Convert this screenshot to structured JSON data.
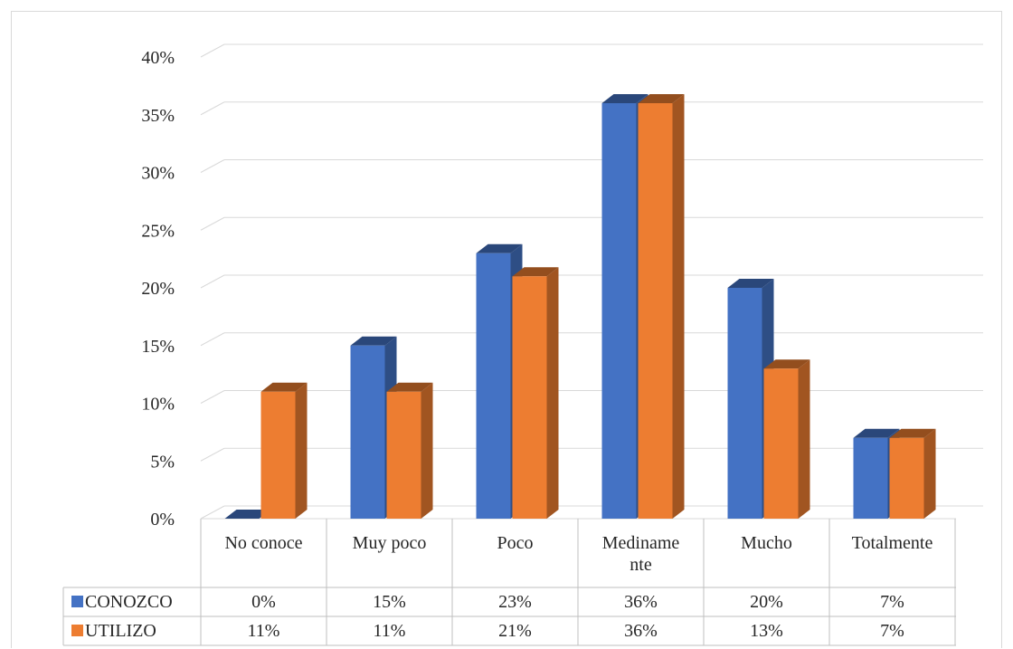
{
  "chart_data": {
    "type": "bar",
    "categories": [
      "No conoce",
      "Muy poco",
      "Poco",
      "Medianamente",
      "Mucho",
      "Totalmente"
    ],
    "category_lines": [
      [
        "No conoce"
      ],
      [
        "Muy poco"
      ],
      [
        "Poco"
      ],
      [
        "Mediname",
        "nte"
      ],
      [
        "Mucho"
      ],
      [
        "Totalmente"
      ]
    ],
    "series": [
      {
        "name": "CONOZCO",
        "values": [
          0,
          15,
          23,
          36,
          20,
          7
        ],
        "labels": [
          "0%",
          "15%",
          "23%",
          "36%",
          "20%",
          "7%"
        ],
        "color": "#4472c4"
      },
      {
        "name": "UTILIZO",
        "values": [
          11,
          11,
          21,
          36,
          13,
          7
        ],
        "labels": [
          "11%",
          "11%",
          "21%",
          "36%",
          "13%",
          "7%"
        ],
        "color": "#ed7d31"
      }
    ],
    "ylim": [
      0,
      40
    ],
    "yticks": [
      "0%",
      "5%",
      "10%",
      "15%",
      "20%",
      "25%",
      "30%",
      "35%",
      "40%"
    ],
    "grid": true,
    "legend": "data-table"
  }
}
